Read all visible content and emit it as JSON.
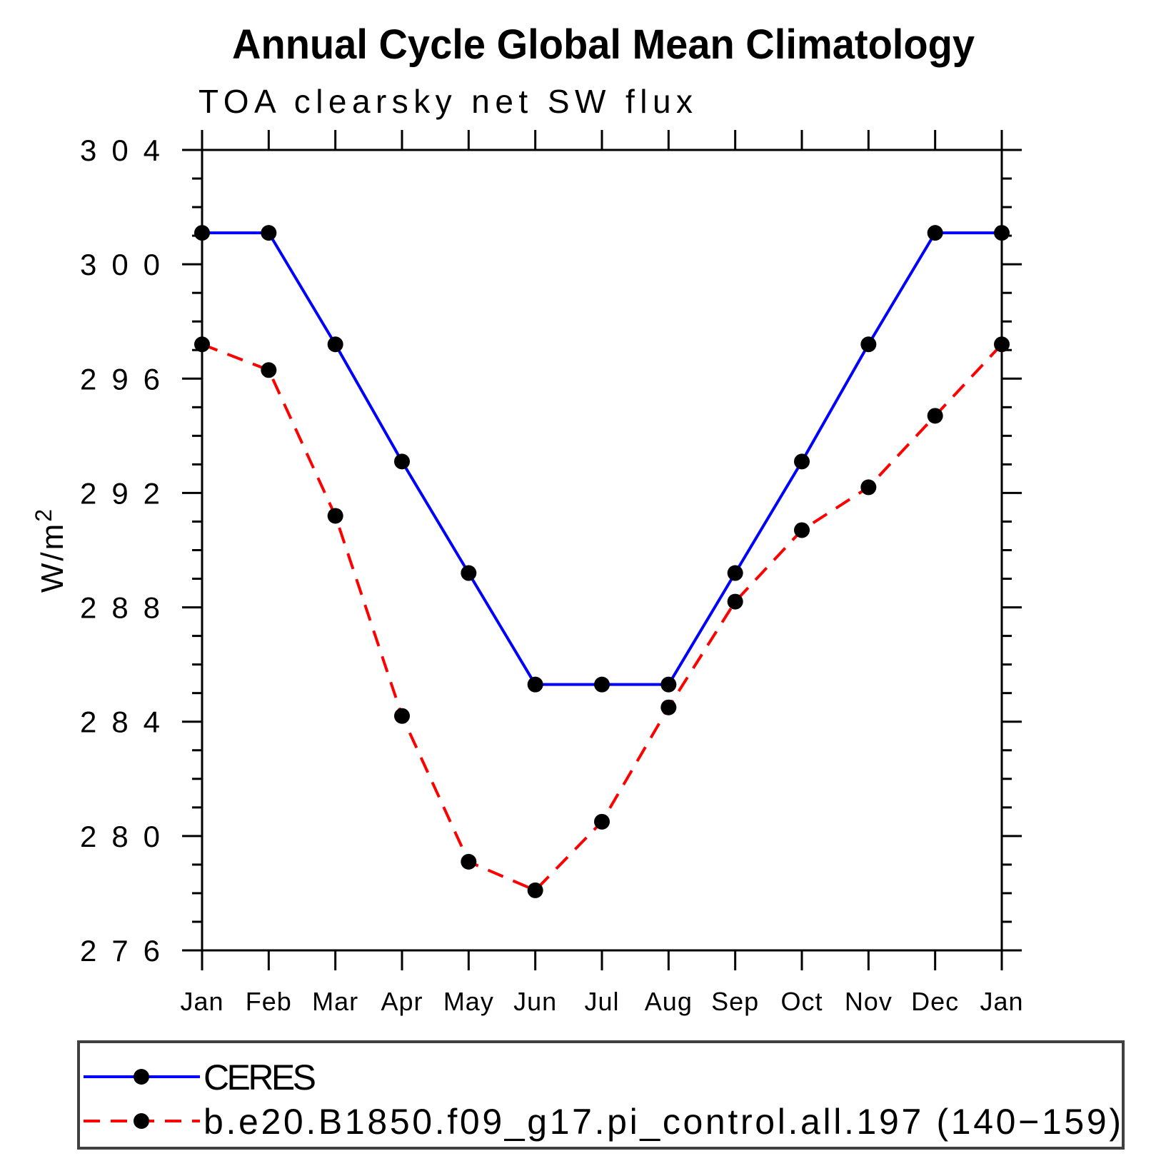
{
  "chart_data": {
    "type": "line",
    "title": "Annual Cycle Global Mean Climatology",
    "subtitle": "TOA clearsky net SW flux",
    "ylabel_main": "W/m",
    "ylabel_sup": "2",
    "x_categories": [
      "Jan",
      "Feb",
      "Mar",
      "Apr",
      "May",
      "Jun",
      "Jul",
      "Aug",
      "Sep",
      "Oct",
      "Nov",
      "Dec",
      "Jan"
    ],
    "ylim": [
      276,
      304
    ],
    "ytick_step_major": 4,
    "ytick_step_minor": 1,
    "grid": false,
    "legend_position": "bottom-left-box",
    "axis_color": "#000000",
    "legend_border_color": "#404040",
    "marker_color": "#000000",
    "series": [
      {
        "name": "CERES",
        "color": "#0000ff",
        "line_style": "solid",
        "marker": "filled-circle",
        "values": [
          301.1,
          301.1,
          297.2,
          293.1,
          289.2,
          285.3,
          285.3,
          285.3,
          289.2,
          293.1,
          297.2,
          301.1,
          301.1
        ]
      },
      {
        "name": "b.e20.B1850.f09_g17.pi_control.all.197 (140−159)",
        "color": "#ff0000",
        "line_style": "dashed",
        "marker": "filled-circle",
        "values": [
          297.2,
          296.3,
          291.2,
          284.2,
          279.1,
          278.1,
          280.5,
          284.5,
          288.2,
          290.7,
          292.2,
          294.7,
          297.2
        ]
      }
    ]
  }
}
